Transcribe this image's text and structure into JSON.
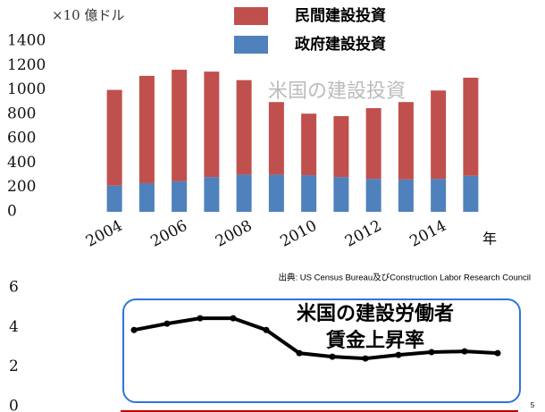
{
  "chart_data": [
    {
      "type": "bar",
      "stacked": true,
      "unit_label": "×10 億ドル",
      "categories": [
        "2004",
        null,
        "2006",
        null,
        "2008",
        null,
        "2010",
        null,
        "2012",
        null,
        "2014",
        null
      ],
      "x_axis_label": "年",
      "series": [
        {
          "name": "民間建設投資",
          "color": "#c0504d",
          "values": [
            785,
            880,
            915,
            865,
            775,
            595,
            505,
            500,
            580,
            635,
            725,
            805
          ]
        },
        {
          "name": "政府建設投資",
          "color": "#4f81bd",
          "values": [
            215,
            235,
            250,
            285,
            305,
            305,
            300,
            285,
            270,
            265,
            270,
            295
          ]
        }
      ],
      "ylim": [
        0,
        1400
      ],
      "yticks": [
        0,
        200,
        400,
        600,
        800,
        1000,
        1200,
        1400
      ],
      "annotation": "米国の建設投資",
      "source": "出典: US Census Bureau及びConstruction Labor Research Council"
    },
    {
      "type": "line",
      "color": "#000000",
      "values": [
        3.87,
        4.19,
        4.46,
        4.46,
        3.87,
        2.7,
        2.52,
        2.43,
        2.61,
        2.75,
        2.79,
        2.7
      ],
      "ylim": [
        0,
        6
      ],
      "yticks": [
        0,
        2,
        4,
        6
      ],
      "annotation": [
        "米国の建設労働者",
        "賃金上昇率"
      ]
    }
  ],
  "page_number": "5"
}
